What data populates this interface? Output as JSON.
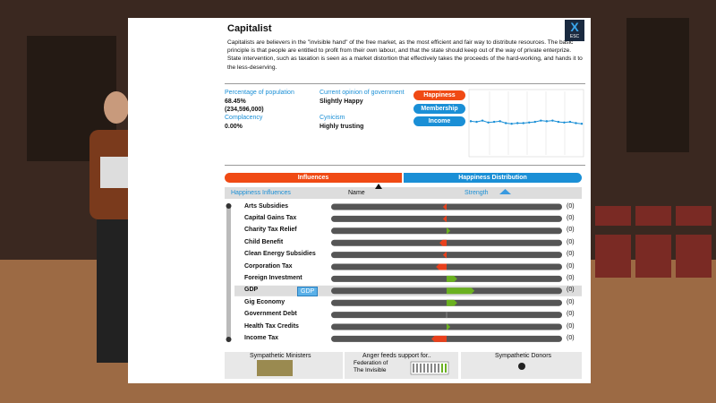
{
  "panel": {
    "title": "Capitalist",
    "description": "Capitalists are believers in the \"invisible hand\" of the free market, as the most efficient and fair way to distribute resources. The basic principle is that people are entitled to profit from their own labour, and that the state should keep out of the way of private enterprize. State intervention, such as taxation is seen as a market distortion that effectively takes the proceeds of the hard-working, and hands it to the less-deserving.",
    "close": {
      "icon": "X",
      "hint": "ESC"
    },
    "stats": {
      "population_label": "Percentage of population",
      "population_pct": "68.45%",
      "population_count": "(234,596,000)",
      "complacency_label": "Complacency",
      "complacency": "0.00%",
      "opinion_label": "Current opinion of government",
      "opinion": "Slightly Happy",
      "cynicism_label": "Cynicism",
      "cynicism": "Highly trusting"
    },
    "buttons": [
      "Happiness",
      "Membership",
      "Income"
    ],
    "history": {
      "range": [
        0,
        1
      ],
      "values": [
        0.53,
        0.52,
        0.54,
        0.51,
        0.52,
        0.53,
        0.5,
        0.49,
        0.5,
        0.5,
        0.51,
        0.52,
        0.54,
        0.53,
        0.54,
        0.52,
        0.51,
        0.52,
        0.5,
        0.49
      ]
    },
    "tabs": [
      "Influences",
      "Happiness Distribution"
    ],
    "table": {
      "header": {
        "section": "Happiness Influences",
        "name": "Name",
        "strength": "Strength"
      },
      "strength_range": [
        -1,
        1
      ],
      "rows": [
        {
          "name": "Arts Subsidies",
          "score": "(0)",
          "strength": -0.02
        },
        {
          "name": "Capital Gains Tax",
          "score": "(0)",
          "strength": -0.02
        },
        {
          "name": "Charity Tax Relief",
          "score": "(0)",
          "strength": 0.02
        },
        {
          "name": "Child Benefit",
          "score": "(0)",
          "strength": -0.05
        },
        {
          "name": "Clean Energy Subsidies",
          "score": "(0)",
          "strength": -0.02
        },
        {
          "name": "Corporation Tax",
          "score": "(0)",
          "strength": -0.08
        },
        {
          "name": "Foreign Investment",
          "score": "(0)",
          "strength": 0.08
        },
        {
          "name": "GDP",
          "score": "(0)",
          "strength": 0.23
        },
        {
          "name": "Gig Economy",
          "score": "(0)",
          "strength": 0.08
        },
        {
          "name": "Government Debt",
          "score": "(0)",
          "strength": 0
        },
        {
          "name": "Health Tax Credits",
          "score": "(0)",
          "strength": 0.02
        },
        {
          "name": "Income Tax",
          "score": "(0)",
          "strength": -0.12
        }
      ],
      "tooltip": "GDP"
    },
    "footer": {
      "ministers": "Sympathetic Ministers",
      "anger": "Anger feeds support for..",
      "party": "Federation of The Invisible",
      "donors": "Sympathetic Donors"
    }
  }
}
